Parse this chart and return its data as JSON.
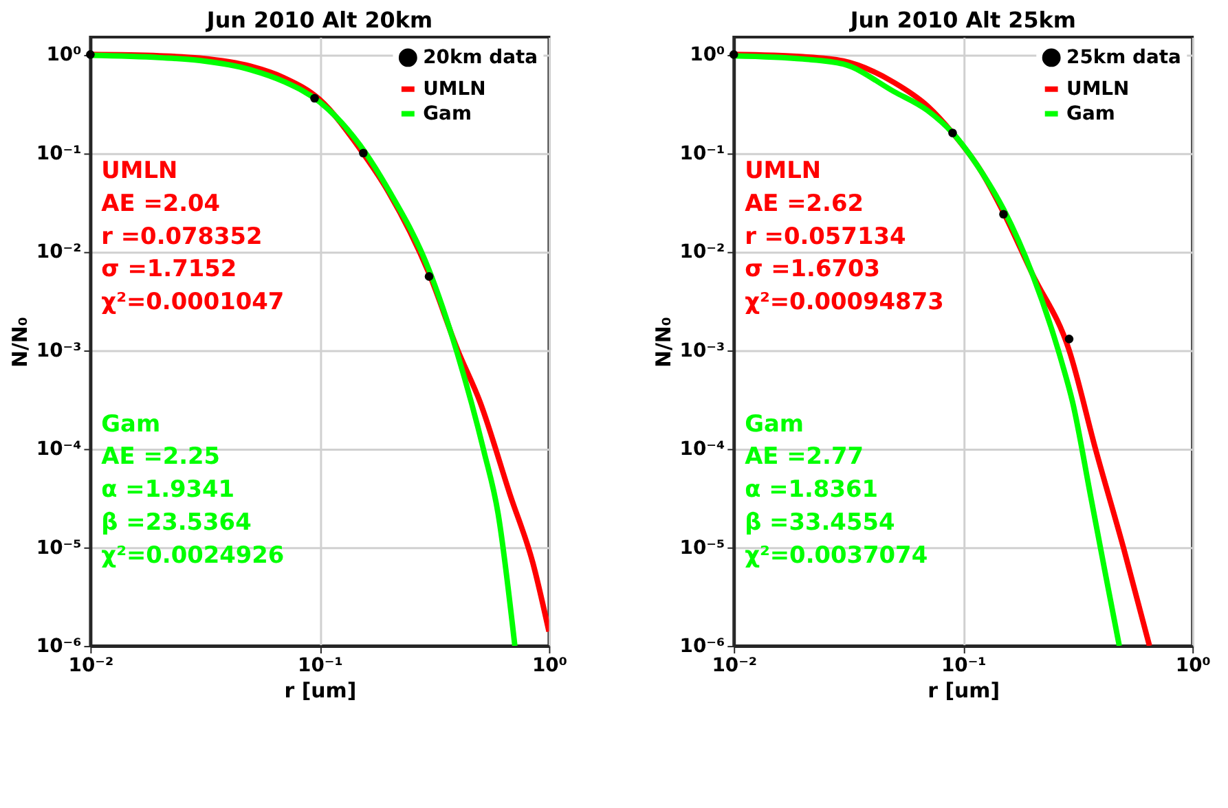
{
  "chart_data": [
    {
      "type": "line",
      "title": "Jun 2010 Alt 20km",
      "xlabel": "r [um]",
      "ylabel": "N/N₀",
      "log": "xy",
      "grid": true,
      "legend": "top right",
      "line_style": "solid",
      "xlim": [
        0.01,
        1
      ],
      "ylim": [
        1e-06,
        1.5
      ],
      "xticks": [
        {
          "value": 0.01,
          "label": "10⁻²"
        },
        {
          "value": 0.1,
          "label": "10⁻¹"
        },
        {
          "value": 1,
          "label": "10⁰"
        }
      ],
      "yticks": [
        {
          "value": 1e-06,
          "label": "10⁻⁶"
        },
        {
          "value": 1e-05,
          "label": "10⁻⁵"
        },
        {
          "value": 0.0001,
          "label": "10⁻⁴"
        },
        {
          "value": 0.001,
          "label": "10⁻³"
        },
        {
          "value": 0.01,
          "label": "10⁻²"
        },
        {
          "value": 0.1,
          "label": "10⁻¹"
        },
        {
          "value": 1,
          "label": "10⁰"
        }
      ],
      "series": [
        {
          "name": "20km data",
          "type": "scatter",
          "marker": "circle",
          "color": "#000000",
          "x": [
            0.01,
            0.095,
            0.155,
            0.3
          ],
          "values": [
            1.0,
            0.36,
            0.1,
            0.0056
          ]
        },
        {
          "name": "UMLN",
          "color": "#ff0000",
          "x": [
            0.01,
            0.02,
            0.03,
            0.05,
            0.07,
            0.1,
            0.15,
            0.2,
            0.3,
            0.4,
            0.5,
            0.68,
            0.85,
            1.0
          ],
          "values": [
            1.0,
            0.97,
            0.92,
            0.76,
            0.58,
            0.35,
            0.11,
            0.04,
            0.006,
            0.001,
            0.0003,
            3.3e-05,
            7e-06,
            1.4e-06
          ]
        },
        {
          "name": "Gam",
          "color": "#00ff00",
          "x": [
            0.01,
            0.02,
            0.03,
            0.05,
            0.07,
            0.1,
            0.15,
            0.2,
            0.3,
            0.4,
            0.52,
            0.6,
            0.71
          ],
          "values": [
            0.98,
            0.93,
            0.87,
            0.7,
            0.53,
            0.33,
            0.12,
            0.042,
            0.0065,
            0.0009,
            9.5e-05,
            2.2e-05,
            1e-06
          ]
        }
      ],
      "annotations": [
        "UMLN\nAE =2.04\nr =0.078352\nσ =1.7152\nχ²=0.0001047",
        "Gam\nAE =2.25\nα =1.9341\nβ =23.5364\nχ²=0.0024926"
      ]
    },
    {
      "type": "line",
      "title": "Jun 2010 Alt 25km",
      "xlabel": "r [um]",
      "ylabel": "N/N₀",
      "log": "xy",
      "grid": true,
      "legend": "top right",
      "line_style": "solid",
      "xlim": [
        0.01,
        1
      ],
      "ylim": [
        1e-06,
        1.5
      ],
      "xticks": [
        {
          "value": 0.01,
          "label": "10⁻²"
        },
        {
          "value": 0.1,
          "label": "10⁻¹"
        },
        {
          "value": 1,
          "label": "10⁰"
        }
      ],
      "yticks": [
        {
          "value": 1e-06,
          "label": "10⁻⁶"
        },
        {
          "value": 1e-05,
          "label": "10⁻⁵"
        },
        {
          "value": 0.0001,
          "label": "10⁻⁴"
        },
        {
          "value": 0.001,
          "label": "10⁻³"
        },
        {
          "value": 0.01,
          "label": "10⁻²"
        },
        {
          "value": 0.1,
          "label": "10⁻¹"
        },
        {
          "value": 1,
          "label": "10⁰"
        }
      ],
      "series": [
        {
          "name": "25km data",
          "type": "scatter",
          "marker": "circle",
          "color": "#000000",
          "x": [
            0.01,
            0.09,
            0.15,
            0.29
          ],
          "values": [
            1.0,
            0.16,
            0.024,
            0.0013
          ]
        },
        {
          "name": "UMLN",
          "color": "#ff0000",
          "x": [
            0.01,
            0.02,
            0.03,
            0.05,
            0.07,
            0.09,
            0.12,
            0.15,
            0.2,
            0.29,
            0.38,
            0.5,
            0.65
          ],
          "values": [
            1.0,
            0.95,
            0.86,
            0.52,
            0.3,
            0.16,
            0.065,
            0.025,
            0.006,
            0.001,
            9.5e-05,
            1e-05,
            1e-06
          ]
        },
        {
          "name": "Gam",
          "color": "#00ff00",
          "x": [
            0.01,
            0.02,
            0.03,
            0.05,
            0.07,
            0.09,
            0.12,
            0.15,
            0.2,
            0.27,
            0.3,
            0.36,
            0.42,
            0.48
          ],
          "values": [
            0.97,
            0.9,
            0.8,
            0.42,
            0.27,
            0.16,
            0.065,
            0.027,
            0.006,
            0.00074,
            0.0003,
            3.3e-05,
            5e-06,
            1e-06
          ]
        }
      ],
      "annotations": [
        "UMLN\nAE =2.62\nr =0.057134\nσ =1.6703\nχ²=0.00094873",
        "Gam\nAE =2.77\nα =1.8361\nβ =33.4554\nχ²=0.0037074"
      ]
    }
  ]
}
